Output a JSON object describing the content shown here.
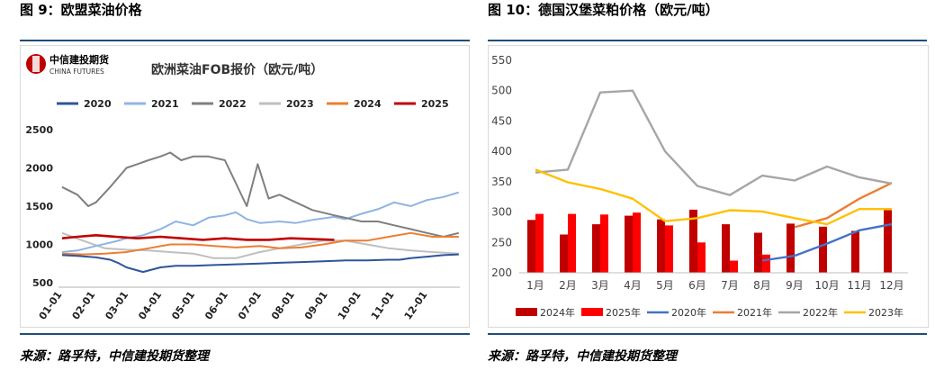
{
  "fig_left": {
    "title": "图 9：欧盟菜油价格",
    "source": "来源：路孚特，中信建投期货整理",
    "logo": {
      "cn": "中信建投期货",
      "en": "CHINA FUTURES"
    }
  },
  "fig_right": {
    "title": "图 10：德国汉堡菜粕价格（欧元/吨）",
    "source": "来源：路孚特，中信建投期货整理"
  },
  "chart_data": [
    {
      "type": "line",
      "title": "欧洲菜油FOB报价（欧元/吨）",
      "ylim": [
        500,
        2500
      ],
      "yticks": [
        500,
        1000,
        1500,
        2000,
        2500
      ],
      "xticks": [
        "01-01",
        "02-01",
        "03-01",
        "04-01",
        "05-01",
        "06-01",
        "07-01",
        "08-01",
        "09-01",
        "10-01",
        "11-01",
        "12-01"
      ],
      "grid": false,
      "legend": "top",
      "series": [
        {
          "name": "2020",
          "color": "#2e5597",
          "x": [
            1,
            15,
            32,
            45,
            52,
            60,
            75,
            91,
            105,
            121,
            140,
            160,
            182,
            200,
            220,
            240,
            260,
            280,
            300,
            310,
            320,
            335,
            350,
            364
          ],
          "y": [
            860,
            850,
            830,
            800,
            760,
            700,
            640,
            700,
            720,
            720,
            730,
            740,
            750,
            760,
            770,
            780,
            790,
            790,
            800,
            800,
            820,
            840,
            860,
            870
          ]
        },
        {
          "name": "2021",
          "color": "#8eb4e3",
          "x": [
            1,
            15,
            32,
            50,
            60,
            75,
            91,
            105,
            121,
            135,
            150,
            160,
            170,
            182,
            200,
            215,
            230,
            250,
            260,
            275,
            290,
            305,
            320,
            335,
            350,
            364
          ],
          "y": [
            900,
            920,
            980,
            1040,
            1080,
            1120,
            1200,
            1300,
            1250,
            1350,
            1380,
            1420,
            1330,
            1280,
            1300,
            1280,
            1320,
            1360,
            1330,
            1400,
            1460,
            1550,
            1500,
            1580,
            1620,
            1680
          ]
        },
        {
          "name": "2022",
          "color": "#7f7f7f",
          "x": [
            1,
            15,
            25,
            32,
            45,
            60,
            70,
            80,
            91,
            100,
            110,
            121,
            135,
            150,
            160,
            170,
            180,
            190,
            200,
            215,
            230,
            250,
            260,
            275,
            290,
            305,
            320,
            335,
            350,
            364
          ],
          "y": [
            1750,
            1650,
            1500,
            1550,
            1750,
            2000,
            2050,
            2100,
            2150,
            2200,
            2100,
            2150,
            2150,
            2100,
            1800,
            1500,
            2050,
            1600,
            1650,
            1550,
            1450,
            1380,
            1350,
            1300,
            1300,
            1250,
            1200,
            1150,
            1100,
            1150
          ]
        },
        {
          "name": "2023",
          "color": "#bfbfbf",
          "x": [
            1,
            20,
            40,
            60,
            80,
            100,
            121,
            140,
            160,
            182,
            200,
            220,
            240,
            260,
            280,
            300,
            320,
            340,
            364
          ],
          "y": [
            1150,
            1050,
            950,
            930,
            920,
            900,
            880,
            820,
            820,
            900,
            950,
            1000,
            1050,
            1050,
            1000,
            950,
            920,
            900,
            880
          ]
        },
        {
          "name": "2024",
          "color": "#ed7d31",
          "x": [
            1,
            20,
            40,
            60,
            80,
            100,
            121,
            140,
            160,
            182,
            200,
            220,
            240,
            260,
            280,
            300,
            320,
            340,
            364
          ],
          "y": [
            880,
            870,
            880,
            900,
            950,
            1000,
            1000,
            980,
            960,
            980,
            950,
            960,
            1000,
            1050,
            1050,
            1100,
            1150,
            1100,
            1100
          ]
        },
        {
          "name": "2025",
          "color": "#c00000",
          "x": [
            1,
            15,
            32,
            50,
            70,
            91,
            110,
            130,
            150,
            170,
            190,
            210,
            230,
            250
          ],
          "y": [
            1080,
            1100,
            1120,
            1100,
            1080,
            1100,
            1080,
            1060,
            1080,
            1060,
            1060,
            1080,
            1070,
            1060
          ]
        }
      ]
    },
    {
      "type": "bar+line",
      "ylim": [
        200,
        550
      ],
      "yticks": [
        200,
        250,
        300,
        350,
        400,
        450,
        500,
        550
      ],
      "categories": [
        "1月",
        "2月",
        "3月",
        "4月",
        "5月",
        "6月",
        "7月",
        "8月",
        "9月",
        "10月",
        "11月",
        "12月"
      ],
      "grid": false,
      "legend": "bottom",
      "bars": [
        {
          "name": "2024年",
          "color": "#c00000",
          "values": [
            287,
            263,
            280,
            294,
            288,
            304,
            280,
            266,
            281,
            276,
            269,
            303
          ]
        },
        {
          "name": "2025年",
          "color": "#ff0000",
          "values": [
            297,
            297,
            296,
            299,
            278,
            250,
            220,
            230,
            null,
            null,
            null,
            null
          ]
        }
      ],
      "lines": [
        {
          "name": "2020年",
          "color": "#4472c4",
          "values": [
            null,
            null,
            null,
            null,
            null,
            null,
            null,
            220,
            228,
            248,
            270,
            280
          ]
        },
        {
          "name": "2021年",
          "color": "#ed7d31",
          "values": [
            null,
            null,
            null,
            null,
            null,
            null,
            null,
            null,
            275,
            290,
            322,
            348
          ]
        },
        {
          "name": "2022年",
          "color": "#a6a6a6",
          "values": [
            365,
            370,
            497,
            500,
            400,
            343,
            328,
            360,
            352,
            375,
            357,
            347
          ]
        },
        {
          "name": "2023年",
          "color": "#ffc000",
          "values": [
            370,
            349,
            338,
            322,
            285,
            290,
            303,
            301,
            290,
            280,
            305,
            305
          ]
        }
      ]
    }
  ]
}
